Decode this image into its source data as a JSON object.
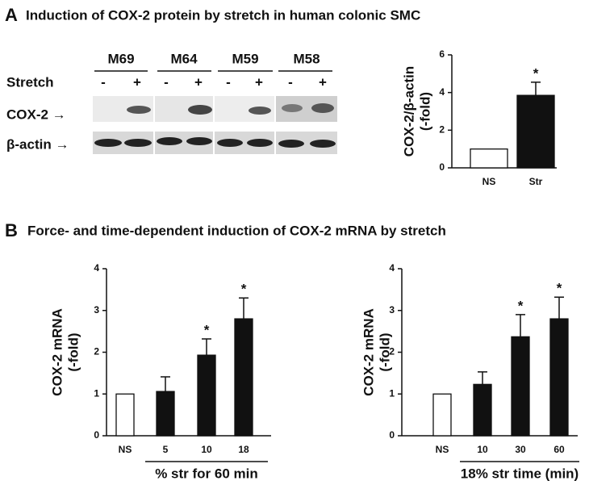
{
  "figure": {
    "panel_a": "A",
    "title_a": "Induction of COX-2 protein by stretch in human colonic SMC",
    "panel_b": "B",
    "title_b": "Force- and time-dependent induction of COX-2 mRNA by stretch",
    "blot": {
      "samples": [
        "M69",
        "M64",
        "M59",
        "M58"
      ],
      "stretch_label": "Stretch",
      "lanes": [
        "-",
        "+",
        "-",
        "+",
        "-",
        "+",
        "-",
        "+"
      ],
      "rows": [
        "COX-2 →",
        "β-actin →"
      ]
    }
  },
  "chart_data": [
    {
      "type": "bar",
      "ylabel": [
        "COX-2/β-actin",
        "(-fold)"
      ],
      "categories": [
        "NS",
        "Str"
      ],
      "values": [
        1,
        3.85
      ],
      "error": [
        null,
        0.7
      ],
      "colors": [
        "#ffffff",
        "#111111"
      ],
      "significance": [
        null,
        "*"
      ],
      "ylim": [
        0,
        6
      ],
      "yticks": [
        0,
        2,
        4,
        6
      ]
    },
    {
      "type": "bar",
      "ylabel": [
        "COX-2 mRNA",
        "(-fold)"
      ],
      "xlabel": "% str for 60 min",
      "categories": [
        "NS",
        "5",
        "10",
        "18"
      ],
      "values": [
        1,
        1.06,
        1.93,
        2.8
      ],
      "error": [
        null,
        0.35,
        0.39,
        0.5
      ],
      "colors": [
        "#ffffff",
        "#111111",
        "#111111",
        "#111111"
      ],
      "significance": [
        null,
        null,
        "*",
        "*"
      ],
      "ylim": [
        0,
        4
      ],
      "yticks": [
        0,
        1,
        2,
        3,
        4
      ]
    },
    {
      "type": "bar",
      "ylabel": [
        "COX-2 mRNA",
        "(-fold)"
      ],
      "xlabel": "18% str time (min)",
      "categories": [
        "NS",
        "10",
        "30",
        "60"
      ],
      "values": [
        1,
        1.23,
        2.37,
        2.8
      ],
      "error": [
        null,
        0.3,
        0.53,
        0.52
      ],
      "colors": [
        "#ffffff",
        "#111111",
        "#111111",
        "#111111"
      ],
      "significance": [
        null,
        null,
        "*",
        "*"
      ],
      "ylim": [
        0,
        4
      ],
      "yticks": [
        0,
        1,
        2,
        3,
        4
      ]
    }
  ]
}
